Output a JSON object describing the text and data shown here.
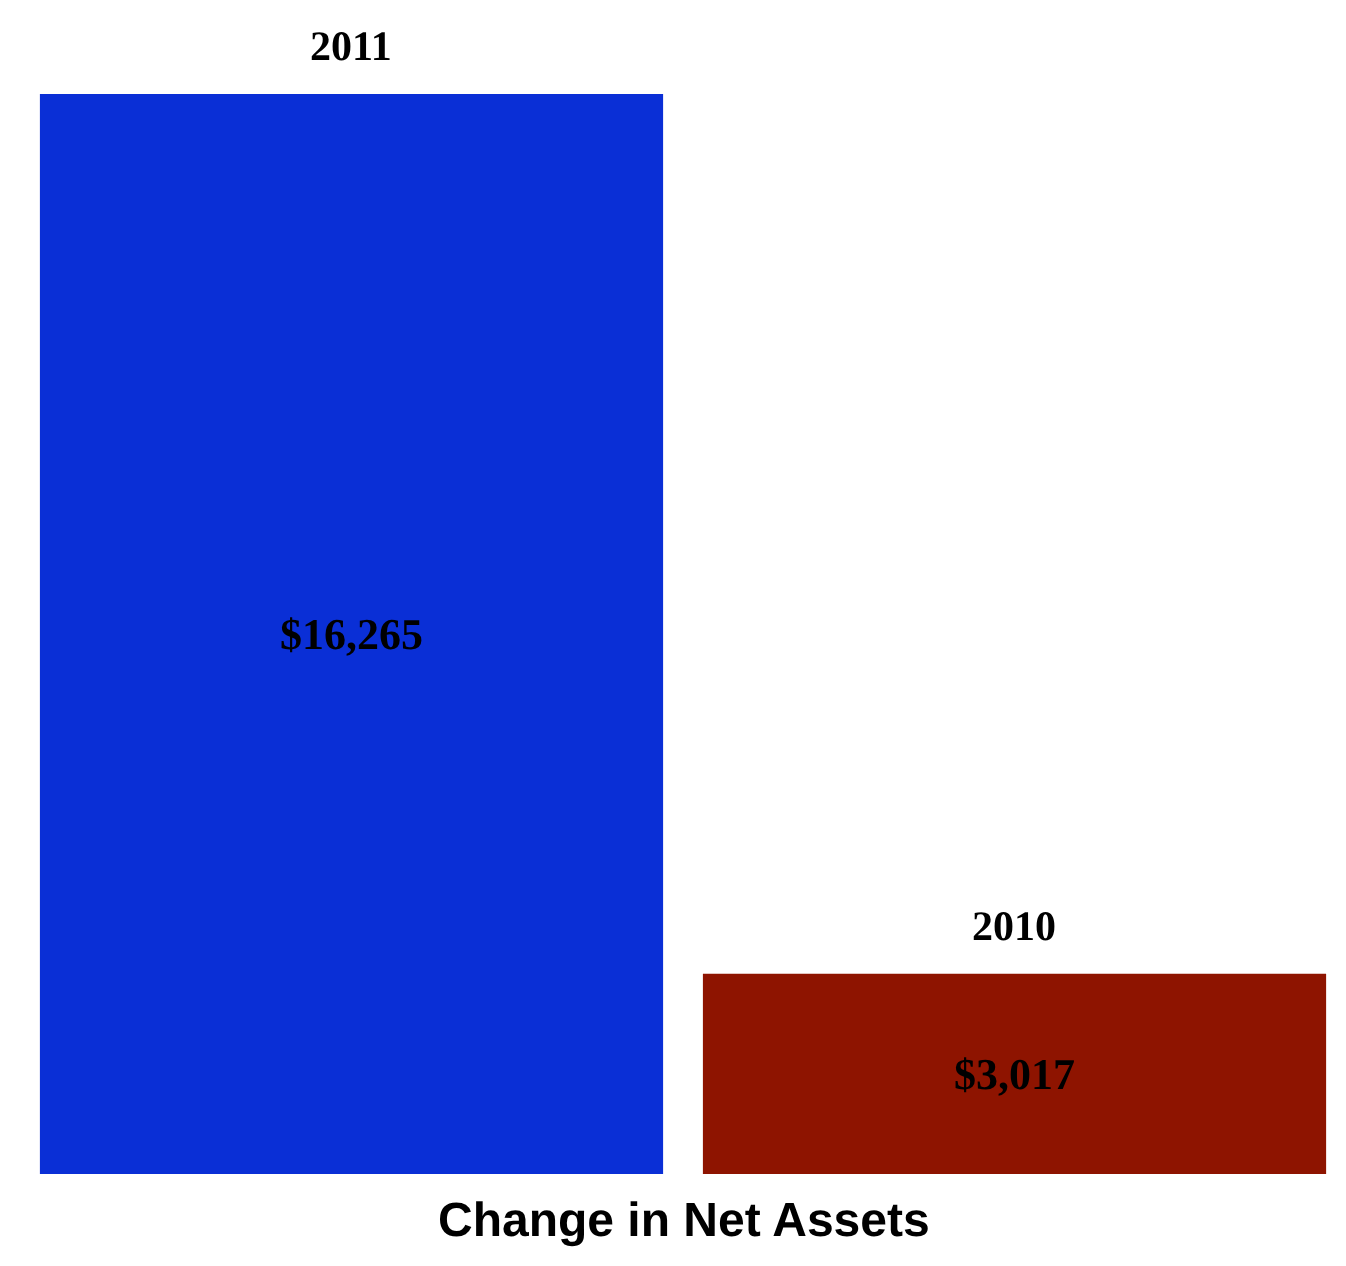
{
  "chart_data": {
    "type": "bar",
    "title": "Change in Net Assets",
    "categories": [
      "2011",
      "2010"
    ],
    "values": [
      16265,
      3017
    ],
    "colors": [
      "#0a2fd6",
      "#8e1400"
    ],
    "value_labels": [
      "$16,265",
      "$3,017"
    ],
    "legend": false
  }
}
